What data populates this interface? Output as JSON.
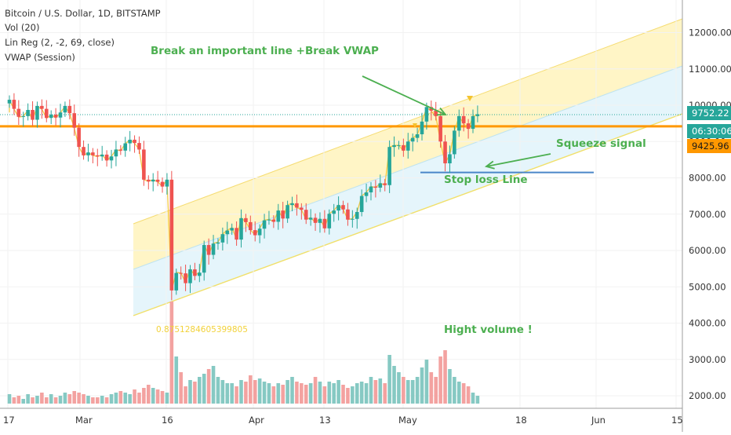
{
  "header": {
    "symbol": "Bitcoin / U.S. Dollar, 1D, BITSTAMP",
    "indicators": [
      "Vol (20)",
      "Lin Reg (2, -2, 69, close)",
      "VWAP (Session)"
    ]
  },
  "annotations": {
    "break_text": "Break an important line +Break VWAP",
    "squeeze_text": "Squeeze signal",
    "stoploss_text": "Stop loss Line",
    "volume_text": "Hight volume !",
    "correlation_value": "0.8751284605399805"
  },
  "price_labels": {
    "last_price": "9752.22",
    "countdown": "06:30:06",
    "vwap": "9425.96"
  },
  "colors": {
    "up": "#26a69a",
    "down": "#ef5350",
    "vol_up": "#86c9c3",
    "vol_down": "#f3a2a0",
    "resistance": "#ff9800",
    "stoploss": "#4a86c8",
    "channel_upper": "#fff2b3",
    "channel_lower": "#dcf1fa",
    "annotation": "#4caf50"
  },
  "chart_data": {
    "type": "candlestick",
    "title": "Bitcoin / U.S. Dollar, 1D, BITSTAMP",
    "x_ticks": [
      "17",
      "Mar",
      "16",
      "Apr",
      "13",
      "May",
      "18",
      "Jun",
      "15"
    ],
    "y_ticks": [
      "2000.00",
      "3000.00",
      "4000.00",
      "5000.00",
      "6000.00",
      "7000.00",
      "8000.00",
      "9000.00",
      "10000.00",
      "11000.00",
      "12000.00"
    ],
    "ylim": [
      1850,
      12600
    ],
    "resistance_level": 9420,
    "stop_loss_level": 8150,
    "close": [
      10150,
      9900,
      9680,
      9700,
      9870,
      9600,
      9980,
      9900,
      9650,
      9740,
      9660,
      9800,
      9980,
      9780,
      9380,
      8850,
      8620,
      8700,
      8620,
      8590,
      8640,
      8480,
      8590,
      8780,
      8750,
      8950,
      9050,
      8960,
      8780,
      7950,
      7900,
      7950,
      7890,
      7760,
      7950,
      4900,
      5380,
      5370,
      5100,
      5480,
      5300,
      5390,
      6150,
      5880,
      6190,
      6220,
      6450,
      6550,
      6620,
      6300,
      6890,
      6780,
      6560,
      6420,
      6600,
      6830,
      6850,
      6790,
      7100,
      6880,
      7250,
      7300,
      7180,
      7120,
      6850,
      6900,
      6760,
      6870,
      6610,
      7010,
      7100,
      7250,
      7130,
      6850,
      6870,
      7060,
      7500,
      7600,
      7760,
      7730,
      7850,
      7800,
      8850,
      8900,
      8900,
      8750,
      9000,
      9100,
      9200,
      9550,
      9950,
      9850,
      9700,
      9000,
      8400,
      8650,
      9300,
      9700,
      9500,
      9350,
      9700,
      9752
    ]
  }
}
